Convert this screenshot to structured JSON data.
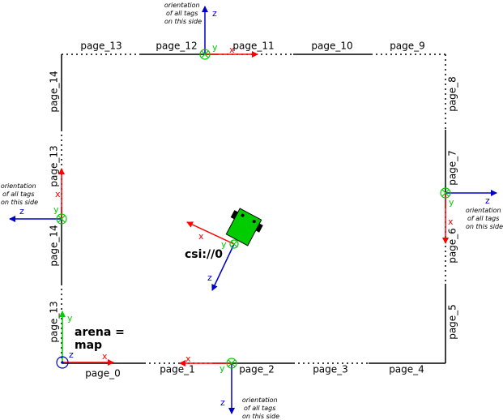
{
  "colors": {
    "x_axis": "#ff0000",
    "y_axis": "#00cc00",
    "z_axis": "#0000cc",
    "robot": "#00cc00",
    "border": "#000000"
  },
  "pages": {
    "bottom": [
      "page_0",
      "page_1",
      "page_2",
      "page_3",
      "page_4"
    ],
    "right": [
      "page_5",
      "page_6",
      "page_7",
      "page_8"
    ],
    "top": [
      "page_9",
      "page_10",
      "page_11",
      "page_12",
      "page_13"
    ],
    "left": [
      "page_13",
      "page_14",
      "page_13",
      "page_14"
    ]
  },
  "axis_labels": {
    "x": "x",
    "y": "y",
    "z": "z"
  },
  "notes": {
    "top": [
      "orientation",
      "of all tags",
      "on this side"
    ],
    "left": [
      "orientation",
      "of all tags",
      "on this side"
    ],
    "right": [
      "orientation",
      "of all tags",
      "on this side"
    ],
    "bottom": [
      "orientation",
      "of all tags",
      "on this side"
    ]
  },
  "robot_label": "csi://0",
  "arena_label": [
    "arena =",
    "map"
  ]
}
